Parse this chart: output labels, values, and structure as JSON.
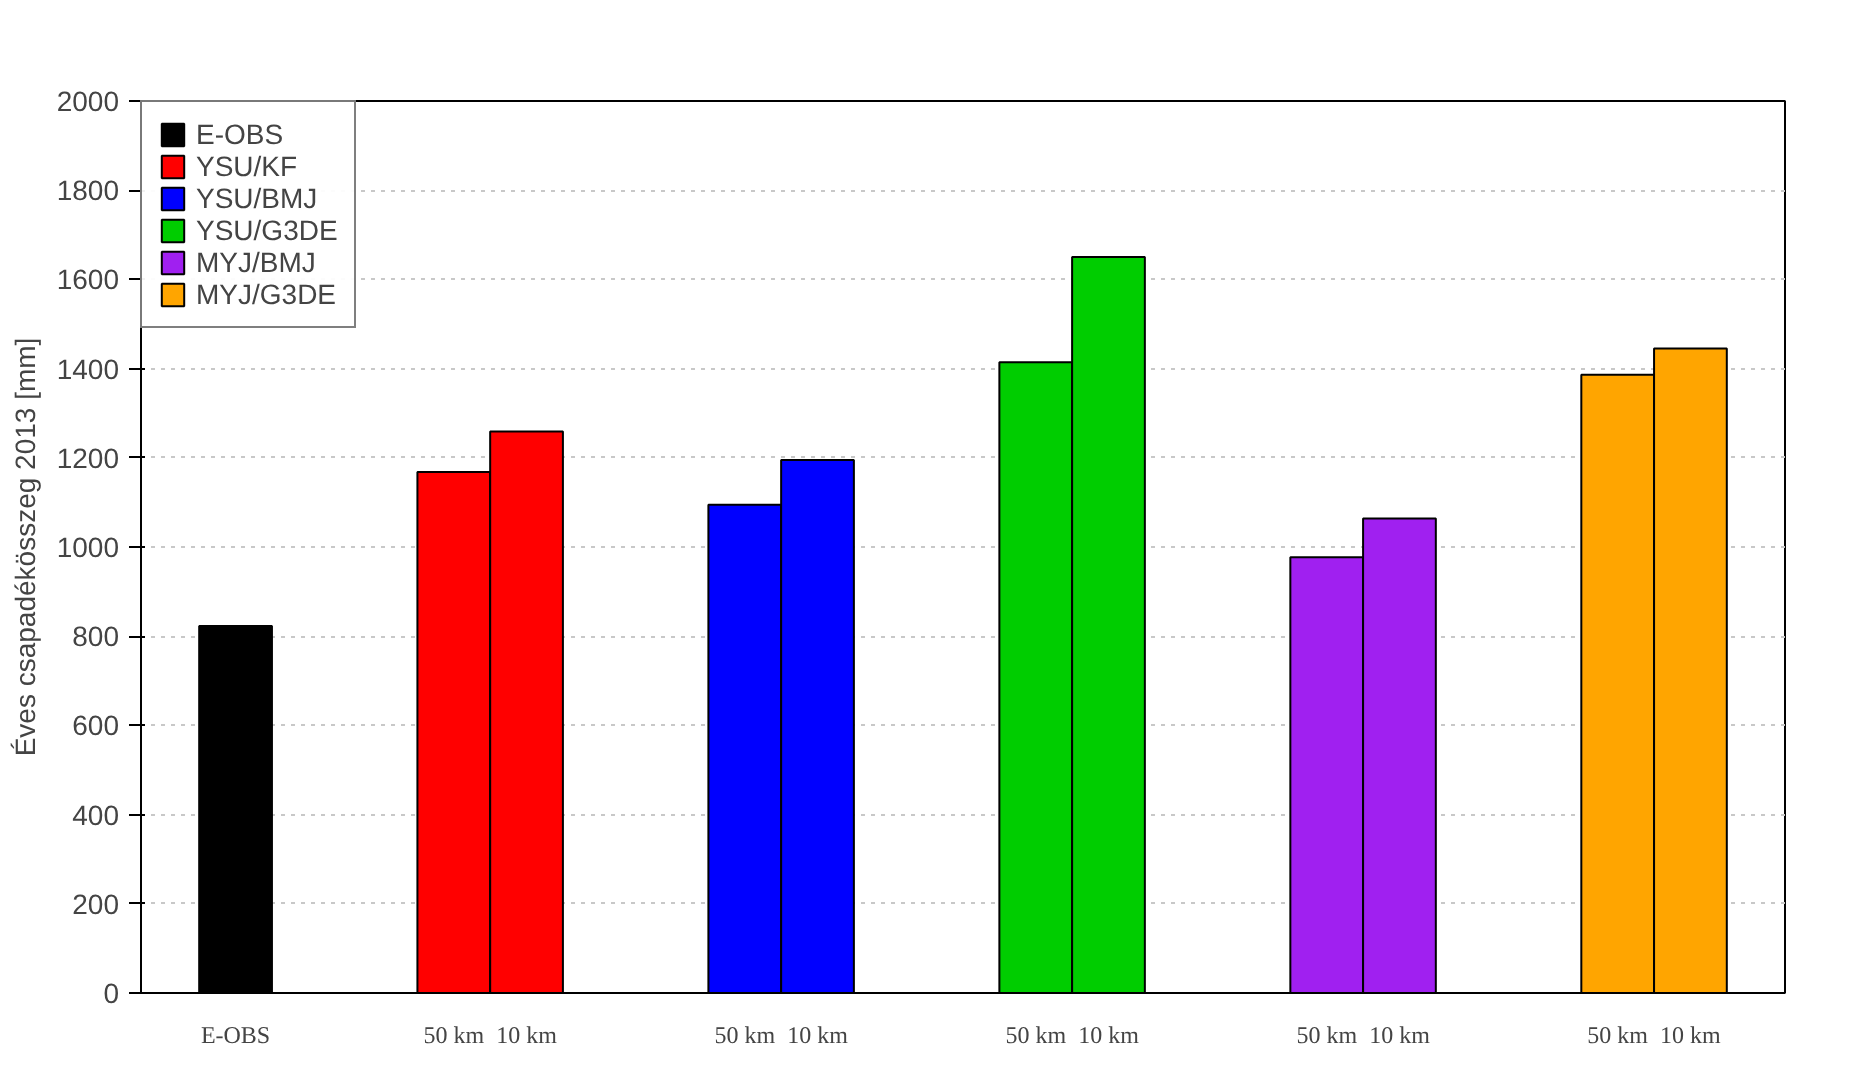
{
  "chart_data": {
    "type": "bar",
    "ylabel": "Éves csapadékösszeg 2013 [mm]",
    "categories": [
      "E-OBS",
      null,
      null,
      "50 km",
      "10 km",
      null,
      null,
      "50 km",
      "10 km",
      null,
      null,
      "50 km",
      "10 km",
      null,
      null,
      "50 km",
      "10 km",
      null,
      null,
      "50 km",
      "10 km"
    ],
    "series": [
      {
        "name": "E-OBS",
        "color": "#000000",
        "values": [
          823,
          null,
          null,
          null,
          null,
          null,
          null,
          null,
          null,
          null,
          null,
          null,
          null,
          null,
          null,
          null,
          null,
          null,
          null,
          null,
          null
        ]
      },
      {
        "name": "YSU/KF",
        "color": "#ff0000",
        "values": [
          null,
          null,
          null,
          1168,
          1259,
          null,
          null,
          null,
          null,
          null,
          null,
          null,
          null,
          null,
          null,
          null,
          null,
          null,
          null,
          null,
          null
        ]
      },
      {
        "name": "YSU/BMJ",
        "color": "#0000ff",
        "values": [
          null,
          null,
          null,
          null,
          null,
          null,
          null,
          1095,
          1195,
          null,
          null,
          null,
          null,
          null,
          null,
          null,
          null,
          null,
          null,
          null,
          null
        ]
      },
      {
        "name": "YSU/G3DE",
        "color": "#00cd00",
        "values": [
          null,
          null,
          null,
          null,
          null,
          null,
          null,
          null,
          null,
          null,
          null,
          1414,
          1650,
          null,
          null,
          null,
          null,
          null,
          null,
          null,
          null
        ]
      },
      {
        "name": "MYJ/BMJ",
        "color": "#a020f0",
        "values": [
          null,
          null,
          null,
          null,
          null,
          null,
          null,
          null,
          null,
          null,
          null,
          null,
          null,
          null,
          null,
          977,
          1064,
          null,
          null,
          null,
          null
        ]
      },
      {
        "name": "MYJ/G3DE",
        "color": "#ffa500",
        "values": [
          null,
          null,
          null,
          null,
          null,
          null,
          null,
          null,
          null,
          null,
          null,
          null,
          null,
          null,
          null,
          null,
          null,
          null,
          null,
          1386,
          1445
        ]
      }
    ],
    "ylim": [
      0,
      2000
    ],
    "yticks": [
      0,
      200,
      400,
      600,
      800,
      1000,
      1200,
      1400,
      1600,
      1800,
      2000
    ],
    "grid": "y",
    "legend": "top left"
  }
}
